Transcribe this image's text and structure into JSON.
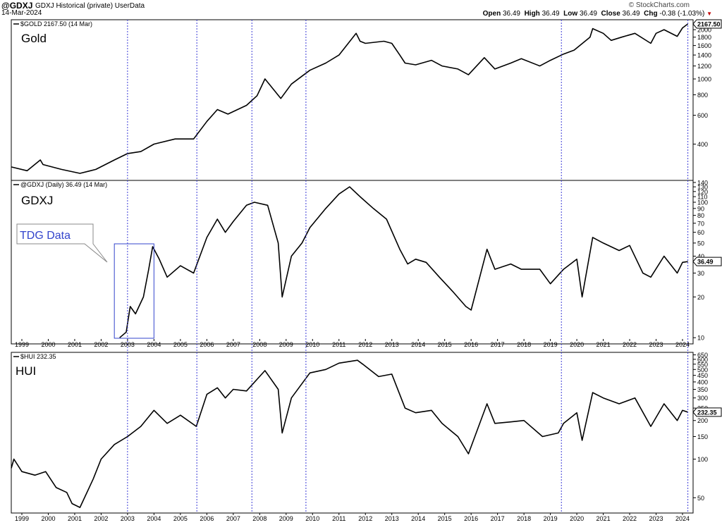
{
  "header": {
    "symbol": "@GDXJ",
    "description": "GDXJ Historical (private) UserData",
    "date": "14-Mar-2024",
    "brand": "© StockCharts.com",
    "open_label": "Open",
    "open": "36.49",
    "high_label": "High",
    "high": "36.49",
    "low_label": "Low",
    "low": "36.49",
    "close_label": "Close",
    "close": "36.49",
    "chg_label": "Chg",
    "chg": "-0.38 (-1.03%)",
    "chg_arrow": "▼"
  },
  "colors": {
    "line": "#000000",
    "vline": "#3b3bd6",
    "callout": "#3344cc",
    "border": "#000000",
    "down": "#c00000"
  },
  "x_axis": {
    "year_labels": [
      "1999",
      "2000",
      "2001",
      "2002",
      "2003",
      "2004",
      "2005",
      "2006",
      "2007",
      "2008",
      "2009",
      "2010",
      "2011",
      "2012",
      "2013",
      "2014",
      "2015",
      "2016",
      "2017",
      "2018",
      "2019",
      "2020",
      "2021",
      "2022",
      "2023",
      "2024"
    ],
    "vertical_markers": [
      "2002-12-31",
      "2005-08-15",
      "2007-09-15",
      "2009-10-01",
      "2019-06-01",
      "2024-03-14"
    ]
  },
  "callout": {
    "text": "TDG Data",
    "period": [
      "2002-07-01",
      "2003-12-31"
    ]
  },
  "chart_data": [
    {
      "type": "line",
      "panel_label": "Gold",
      "legend": "$GOLD 2167.50 (14 Mar)",
      "last_value_label": "2167.50",
      "y_scale": "log",
      "ylim": [
        240,
        2300
      ],
      "y_ticks": [
        400,
        600,
        800,
        1000,
        1200,
        1400,
        1600,
        1800,
        2000
      ],
      "series": [
        {
          "x": [
            1998.6,
            1999.2,
            1999.7,
            1999.8,
            2000.5,
            2001.2,
            2001.8,
            2002.5,
            2003.0,
            2003.5,
            2004.0,
            2004.8,
            2005.5,
            2006.0,
            2006.4,
            2006.8,
            2007.5,
            2007.9,
            2008.2,
            2008.8,
            2009.2,
            2009.9,
            2010.5,
            2011.0,
            2011.65,
            2011.8,
            2012.0,
            2012.7,
            2013.0,
            2013.3,
            2013.5,
            2013.9,
            2014.5,
            2014.9,
            2015.5,
            2015.9,
            2016.5,
            2016.9,
            2017.5,
            2017.9,
            2018.6,
            2019.0,
            2019.5,
            2019.9,
            2020.5,
            2020.6,
            2021.0,
            2021.3,
            2021.7,
            2022.2,
            2022.8,
            2023.0,
            2023.3,
            2023.8,
            2024.0,
            2024.2
          ],
          "y": [
            290,
            275,
            320,
            300,
            280,
            265,
            280,
            320,
            350,
            360,
            400,
            430,
            430,
            550,
            650,
            610,
            690,
            790,
            1000,
            760,
            930,
            1130,
            1250,
            1400,
            1900,
            1700,
            1650,
            1700,
            1650,
            1400,
            1250,
            1220,
            1300,
            1200,
            1150,
            1060,
            1350,
            1150,
            1250,
            1330,
            1200,
            1300,
            1420,
            1500,
            1800,
            2030,
            1900,
            1720,
            1800,
            1900,
            1650,
            1900,
            2000,
            1820,
            2050,
            2167.5
          ]
        }
      ]
    },
    {
      "type": "line",
      "panel_label": "GDXJ",
      "legend": "@GDXJ (Daily) 36.49 (14 Mar)",
      "last_value_label": "36.49",
      "y_scale": "log",
      "ylim": [
        9,
        145
      ],
      "y_ticks": [
        10,
        20,
        30,
        40,
        50,
        60,
        70,
        80,
        90,
        100,
        110,
        120,
        130,
        140
      ],
      "series": [
        {
          "x": [
            2002.7,
            2002.95,
            2003.1,
            2003.3,
            2003.6,
            2003.8,
            2003.95,
            2004.2,
            2004.5,
            2005.0,
            2005.5,
            2006.0,
            2006.4,
            2006.7,
            2007.0,
            2007.5,
            2007.8,
            2008.3,
            2008.7,
            2008.85,
            2009.2,
            2009.6,
            2009.9,
            2010.5,
            2011.0,
            2011.4,
            2011.8,
            2012.3,
            2012.8,
            2013.3,
            2013.6,
            2013.9,
            2014.3,
            2014.8,
            2015.3,
            2015.8,
            2016.0,
            2016.6,
            2016.9,
            2017.5,
            2017.9,
            2018.6,
            2019.0,
            2019.5,
            2020.0,
            2020.2,
            2020.6,
            2021.0,
            2021.6,
            2022.0,
            2022.5,
            2022.8,
            2023.3,
            2023.8,
            2024.0,
            2024.2
          ],
          "y": [
            10,
            11,
            17,
            15,
            20,
            32,
            47,
            38,
            28,
            34,
            30,
            55,
            75,
            60,
            72,
            95,
            100,
            95,
            50,
            20,
            40,
            50,
            65,
            90,
            115,
            130,
            110,
            90,
            75,
            45,
            35,
            38,
            36,
            28,
            22,
            17,
            16,
            45,
            32,
            35,
            32,
            32,
            25,
            32,
            38,
            20,
            55,
            50,
            44,
            48,
            30,
            28,
            40,
            30,
            36,
            36.49
          ]
        }
      ]
    },
    {
      "type": "line",
      "panel_label": "HUI",
      "legend": "$HUI 232.35",
      "last_value_label": "232.35",
      "y_scale": "log",
      "ylim": [
        38,
        680
      ],
      "y_ticks": [
        50,
        100,
        150,
        200,
        250,
        300,
        350,
        400,
        450,
        500,
        550,
        600,
        650
      ],
      "series": [
        {
          "x": [
            1998.6,
            1998.7,
            1999.0,
            1999.5,
            1999.9,
            2000.3,
            2000.7,
            2000.9,
            2001.2,
            2001.7,
            2002.0,
            2002.5,
            2003.0,
            2003.5,
            2004.0,
            2004.5,
            2005.0,
            2005.6,
            2006.0,
            2006.4,
            2006.7,
            2007.0,
            2007.5,
            2008.2,
            2008.7,
            2008.85,
            2009.2,
            2009.9,
            2010.5,
            2011.0,
            2011.7,
            2011.9,
            2012.5,
            2013.0,
            2013.5,
            2013.9,
            2014.5,
            2014.9,
            2015.5,
            2015.9,
            2016.6,
            2016.9,
            2017.5,
            2018.0,
            2018.7,
            2019.3,
            2019.5,
            2020.0,
            2020.2,
            2020.6,
            2021.0,
            2021.6,
            2022.2,
            2022.8,
            2023.3,
            2023.8,
            2024.0,
            2024.2
          ],
          "y": [
            85,
            100,
            80,
            75,
            80,
            60,
            55,
            45,
            42,
            70,
            100,
            130,
            150,
            180,
            240,
            190,
            220,
            180,
            320,
            360,
            300,
            350,
            340,
            490,
            350,
            160,
            300,
            470,
            500,
            560,
            590,
            550,
            440,
            460,
            250,
            230,
            240,
            190,
            150,
            110,
            270,
            190,
            195,
            200,
            150,
            160,
            190,
            230,
            140,
            330,
            300,
            270,
            300,
            180,
            270,
            200,
            240,
            232.35
          ]
        }
      ]
    }
  ]
}
